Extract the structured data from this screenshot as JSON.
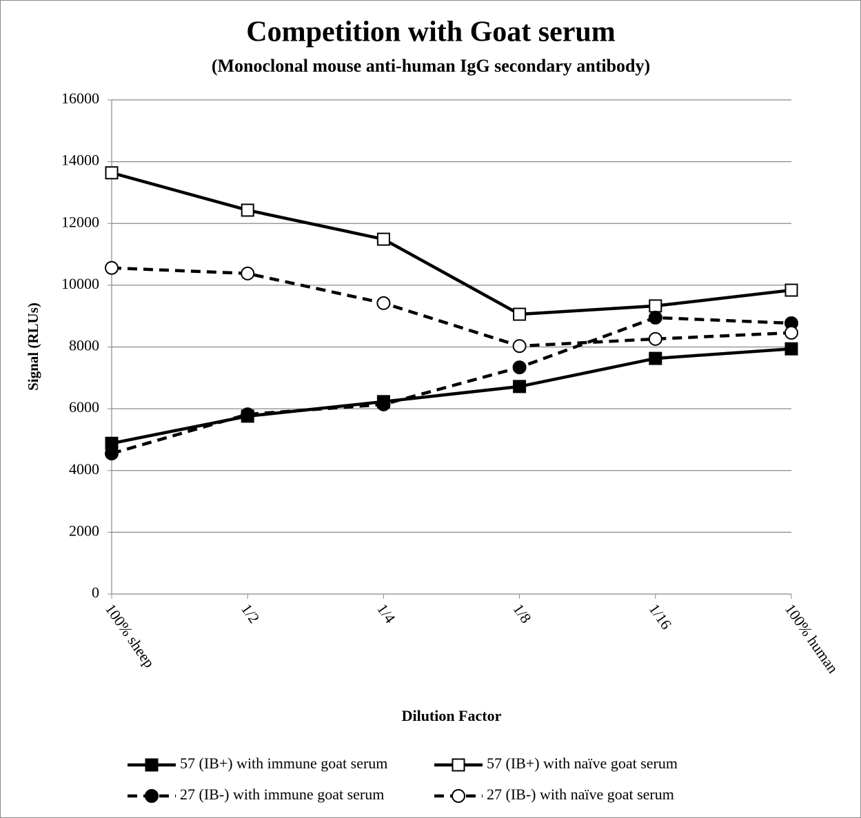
{
  "chart_data": {
    "type": "line",
    "title": "Competition with Goat serum",
    "subtitle": "(Monoclonal mouse anti-human IgG secondary antibody)",
    "y_label": "Signal (RLUs)",
    "x_label": "Dilution Factor",
    "categories": [
      "100% sheep",
      "1/2",
      "1/4",
      "1/8",
      "1/16",
      "100% human"
    ],
    "ylim": [
      0,
      16000
    ],
    "yticks": [
      0,
      2000,
      4000,
      6000,
      8000,
      10000,
      12000,
      14000,
      16000
    ],
    "grid": true,
    "legend": "bottom",
    "series": [
      {
        "name": "57 (IB+) with immune goat serum",
        "color": "#000000",
        "marker": "square",
        "marker_fill": "filled",
        "line_style": "solid",
        "values": [
          4880,
          5760,
          6230,
          6720,
          7630,
          7940
        ]
      },
      {
        "name": "57 (IB+) with naïve goat serum",
        "color": "#000000",
        "marker": "square",
        "marker_fill": "open",
        "line_style": "solid",
        "values": [
          13640,
          12430,
          11490,
          9060,
          9330,
          9840
        ]
      },
      {
        "name": "27 (IB-) with immune goat serum",
        "color": "#000000",
        "marker": "circle",
        "marker_fill": "filled",
        "line_style": "dashed",
        "values": [
          4550,
          5820,
          6140,
          7340,
          8950,
          8770
        ]
      },
      {
        "name": "27 (IB-) with naïve goat serum",
        "color": "#000000",
        "marker": "circle",
        "marker_fill": "open",
        "line_style": "dashed",
        "values": [
          10560,
          10380,
          9420,
          8030,
          8260,
          8460
        ]
      }
    ]
  }
}
